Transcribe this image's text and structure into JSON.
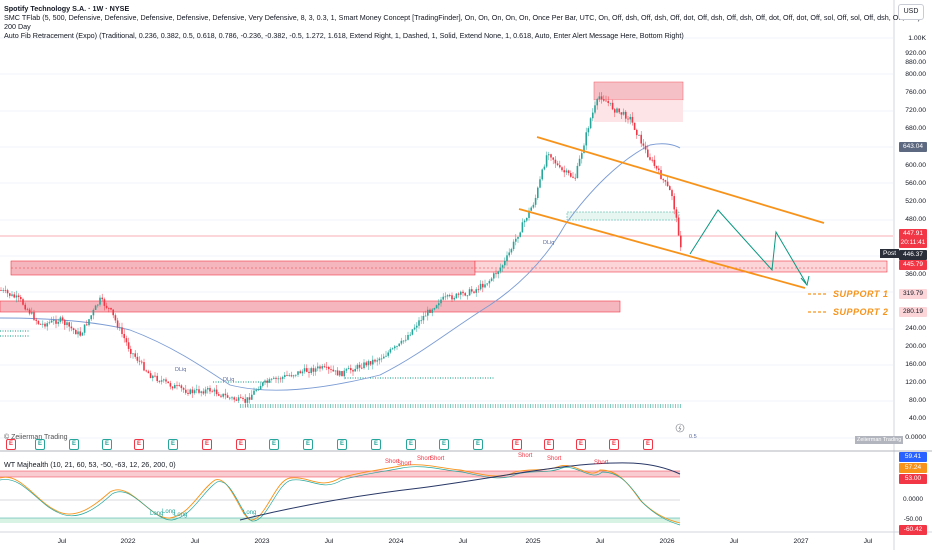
{
  "header": {
    "title": "Spotify Technology S.A. · 1W · NYSE",
    "indicator_smc": "SMC TFlab (5, 500, Defensive, Defensive, Defensive, Defensive, Defensive, Very Defensive, 8, 3, 0.3, 1, Smart Money Concept [TradingFinder], On, On, On, On, On, Once Per Bar, UTC, On, Off, dsh, Off, dsh, Off, dot, Off, dsh, Off, dsh, Off, dot, Off, dot, Off, sol, Off, sol, Off, dsh, Off, dsh)",
    "indicator_ma": "200 Day",
    "indicator_fib": "Auto Fib Retracement (Expo) (Traditional, 0.236, 0.382, 0.5, 0.618, 0.786, -0.236, -0.382, -0.5, 1.272, 1.618, Extend Right, 1, Dashed, 1, Solid, Extend None, 1, 0.618, Auto, Enter Alert Message Here, Bottom Right)",
    "currency": "USD"
  },
  "y_axis": {
    "labels": [
      "1.00K",
      "920.00",
      "880.00",
      "800.00",
      "760.00",
      "720.00",
      "680.00",
      "600.00",
      "560.00",
      "520.00",
      "480.00",
      "360.00",
      "320.00",
      "240.00",
      "200.00",
      "160.00",
      "120.00",
      "80.00",
      "40.00",
      "0.0000"
    ]
  },
  "price_tags": {
    "current": {
      "value": "447.91",
      "color": "#f23645"
    },
    "countdown": {
      "value": "20:11:41",
      "color": "#f23645"
    },
    "ma": {
      "value": "643.04",
      "color": "#5d6980"
    },
    "post": {
      "value": "446.37",
      "color": "#2a2e39"
    },
    "zone": {
      "value": "445.79",
      "color": "#f23645"
    },
    "support1": {
      "value": "319.79",
      "color": "#f23645"
    },
    "support2": {
      "value": "280.19",
      "color": "#f23645"
    }
  },
  "post_label": "Post",
  "support_labels": [
    "SUPPORT 1",
    "SUPPORT 2"
  ],
  "watermark": "© Zeiierman Trading",
  "zeiierman_tag": "Zeiierman Trading",
  "dliq_labels": [
    "DLiq",
    "DLiq",
    "DLiq"
  ],
  "fib_zero": "0.5",
  "x_axis": {
    "labels": [
      "Jul",
      "2022",
      "Jul",
      "2023",
      "Jul",
      "2024",
      "Jul",
      "2025",
      "Jul",
      "2026",
      "Jul",
      "2027",
      "Jul"
    ]
  },
  "indicator_panel": {
    "title": "WT Majhealth (10, 21, 60, 53, -50, -63, 12, 26, 200, 0)",
    "y_labels": {
      "top1": {
        "value": "59.41",
        "color": "#2962ff"
      },
      "top2": {
        "value": "57.24",
        "color": "#f7931a"
      },
      "top3": {
        "value": "53.00",
        "color": "#f23645"
      },
      "zero": {
        "value": "0.0000",
        "color": "#ffffff"
      },
      "low1": {
        "value": "-50.00",
        "color": "#26a69a"
      },
      "low2": {
        "value": "-60.42",
        "color": "#f23645"
      }
    },
    "signals": [
      "Short",
      "Short",
      "Short",
      "Short",
      "Short",
      "Short",
      "Short",
      "Long",
      "Long",
      "Long",
      "Long"
    ]
  },
  "event_badges": [
    "E",
    "E",
    "E",
    "E",
    "E",
    "E",
    "E",
    "E",
    "E",
    "E",
    "E",
    "E",
    "E",
    "E",
    "E",
    "E",
    "E",
    "E",
    "E",
    "E"
  ],
  "colors": {
    "bull": "#26a69a",
    "bear": "#f23645",
    "channel": "#f7931a",
    "projection": "#089981",
    "ma_line": "#7b9cd4",
    "supply_zone": "#f5b7bd"
  }
}
